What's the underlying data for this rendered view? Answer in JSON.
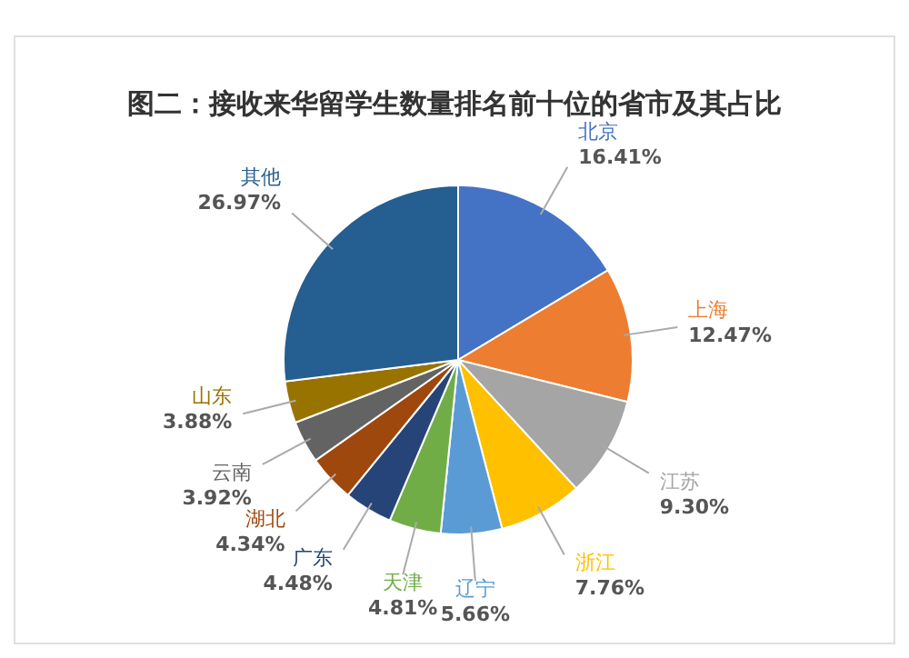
{
  "chart_data": {
    "type": "pie",
    "title": "图二：接收来华留学生数量排名前十位的省市及其占比",
    "categories": [
      "北京",
      "上海",
      "江苏",
      "浙江",
      "辽宁",
      "天津",
      "广东",
      "湖北",
      "云南",
      "山东",
      "其他"
    ],
    "values": [
      16.41,
      12.47,
      9.3,
      7.76,
      5.66,
      4.81,
      4.48,
      4.34,
      3.92,
      3.88,
      26.97
    ],
    "value_labels": [
      "16.41%",
      "12.47%",
      "9.30%",
      "7.76%",
      "5.66%",
      "4.81%",
      "4.48%",
      "4.34%",
      "3.92%",
      "3.88%",
      "26.97%"
    ],
    "colors": [
      "#4472c4",
      "#ed7d31",
      "#a5a5a5",
      "#ffc000",
      "#5b9bd5",
      "#70ad47",
      "#264478",
      "#9e480e",
      "#636363",
      "#997300",
      "#255e91"
    ]
  }
}
